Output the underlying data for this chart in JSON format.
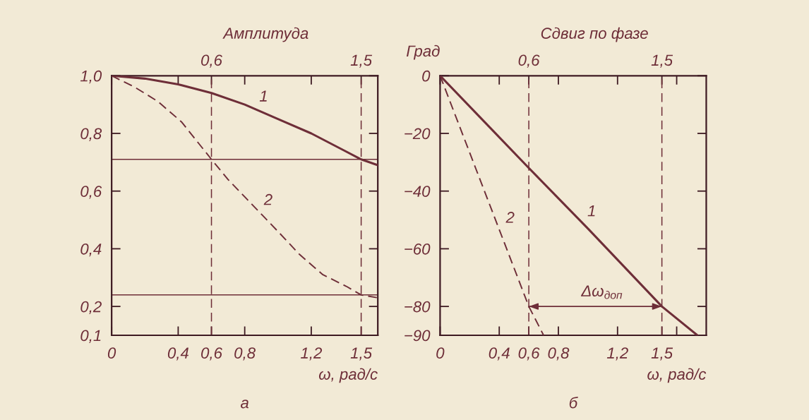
{
  "chart_data": [
    {
      "type": "line",
      "title": "Амплитуда",
      "xlabel": "ω, рад/с",
      "xlim": [
        0,
        1.6
      ],
      "xticks": [
        0,
        {
          "value": 0.4,
          "label": "0,4"
        },
        {
          "value": 0.6,
          "label": "0,6"
        },
        {
          "value": 0.8,
          "label": "0,8"
        },
        {
          "value": 1.2,
          "label": "1,2"
        },
        {
          "value": 1.5,
          "label": "1,5"
        }
      ],
      "ylim": [
        0.1,
        1.0
      ],
      "yticks": [
        {
          "value": 1.0,
          "label": "1,0"
        },
        {
          "value": 0.8,
          "label": "0,8"
        },
        {
          "value": 0.6,
          "label": "0,6"
        },
        {
          "value": 0.4,
          "label": "0,4"
        },
        {
          "value": 0.2,
          "label": "0,2"
        },
        {
          "value": 0.1,
          "label": "0,1"
        }
      ],
      "series": [
        {
          "name": "1",
          "color": "#6e2e38",
          "line_style": "solid",
          "x": [
            0,
            0.2,
            0.4,
            0.6,
            0.8,
            1.0,
            1.2,
            1.4,
            1.5,
            1.6
          ],
          "values": [
            1.0,
            0.99,
            0.97,
            0.94,
            0.9,
            0.85,
            0.8,
            0.74,
            0.71,
            0.69
          ]
        },
        {
          "name": "2",
          "color": "#6e2e38",
          "line_style": "dashed",
          "x": [
            0,
            0.14,
            0.28,
            0.42,
            0.6,
            0.7,
            0.85,
            1.0,
            1.13,
            1.27,
            1.41,
            1.5,
            1.6
          ],
          "values": [
            1.0,
            0.96,
            0.91,
            0.84,
            0.71,
            0.64,
            0.55,
            0.46,
            0.38,
            0.31,
            0.27,
            0.24,
            0.23
          ]
        }
      ],
      "ref_lines": [
        {
          "axis": "x",
          "value": 0.6,
          "label": "0,6",
          "line_style": "dashed",
          "color": "#6e2e38"
        },
        {
          "axis": "x",
          "value": 1.5,
          "label": "1,5",
          "line_style": "dashed",
          "color": "#6e2e38"
        },
        {
          "axis": "y",
          "value": 0.71,
          "line_style": "solid",
          "color": "#6e2e38"
        },
        {
          "axis": "y",
          "value": 0.24,
          "line_style": "solid",
          "color": "#6e2e38"
        }
      ],
      "annotations": [
        "а"
      ]
    },
    {
      "type": "line",
      "title": "Сдвиг по фазе",
      "xlabel": "ω, рад/с",
      "ylabel": "Град",
      "xlim": [
        0,
        1.8
      ],
      "xticks": [
        0,
        {
          "value": 0.4,
          "label": "0,4"
        },
        {
          "value": 0.6,
          "label": "0,6"
        },
        {
          "value": 0.8,
          "label": "0,8"
        },
        {
          "value": 1.2,
          "label": "1,2"
        },
        {
          "value": 1.5,
          "label": "1,5"
        },
        {
          "value": 1.6,
          "label": null
        }
      ],
      "ylim": [
        -90,
        0
      ],
      "yticks": [
        0,
        {
          "value": -20,
          "label": "−20"
        },
        {
          "value": -40,
          "label": "−40"
        },
        {
          "value": -60,
          "label": "−60"
        },
        {
          "value": -80,
          "label": "−80"
        },
        {
          "value": -90,
          "label": "−90"
        }
      ],
      "series": [
        {
          "name": "1",
          "color": "#6e2e38",
          "line_style": "solid",
          "x": [
            0,
            0.3,
            0.6,
            1.0,
            1.5,
            1.74
          ],
          "values": [
            0,
            -16,
            -32,
            -53,
            -80,
            -90
          ]
        },
        {
          "name": "2",
          "color": "#6e2e38",
          "line_style": "dashed",
          "x": [
            0,
            0.6,
            0.7
          ],
          "values": [
            0,
            -80,
            -90
          ]
        },
        {
          "name": "Δω$_{доп}$",
          "color": "#6e2e38",
          "line_style": "solid",
          "x": [
            0.6,
            1.5
          ],
          "values": [
            -80,
            -80
          ]
        }
      ],
      "ref_lines": [
        {
          "axis": "x",
          "value": 0.6,
          "label": "0,6",
          "line_style": "dashed",
          "color": "#6e2e38"
        },
        {
          "axis": "x",
          "value": 1.5,
          "label": "1,5",
          "line_style": "dashed",
          "color": "#6e2e38"
        }
      ],
      "annotations": [
        "б"
      ]
    }
  ]
}
